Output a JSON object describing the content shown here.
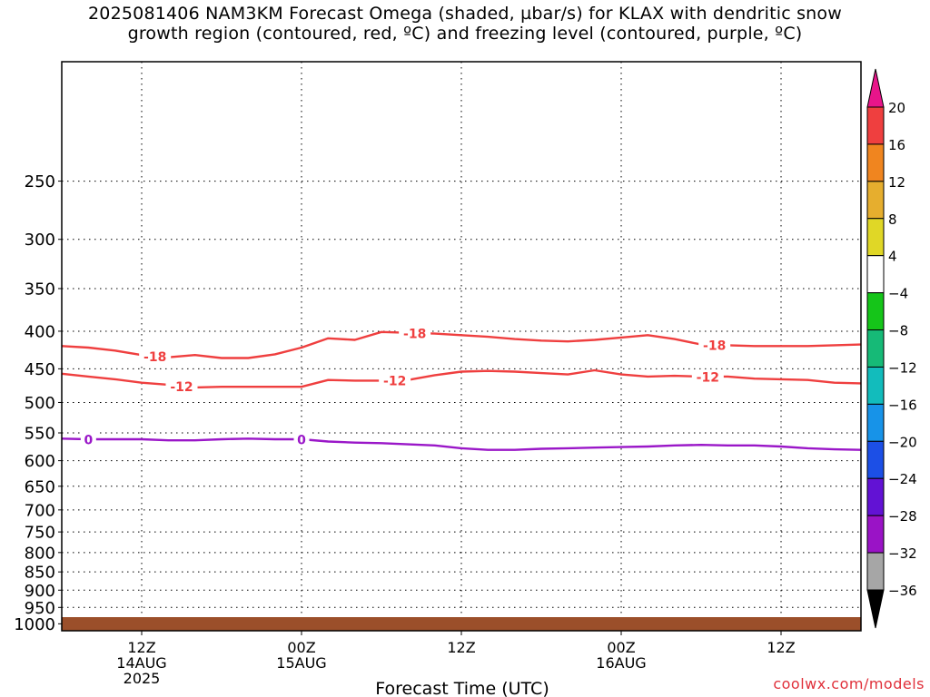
{
  "chart_data": {
    "type": "line",
    "title_line1": "2025081406 NAM3KM Forecast Omega (shaded, µbar/s) for KLAX with dendritic snow",
    "title_line2": "growth region (contoured, red, ºC) and freezing level (contoured, purple, ºC)",
    "xlabel": "Forecast Time (UTC)",
    "ylabel": "",
    "credit": "coolwx.com/models",
    "x_range_hours": [
      6,
      66
    ],
    "x_ticks": [
      {
        "hour": 12,
        "lines": [
          "12Z",
          "14AUG",
          "2025"
        ]
      },
      {
        "hour": 24,
        "lines": [
          "00Z",
          "15AUG"
        ]
      },
      {
        "hour": 36,
        "lines": [
          "12Z"
        ]
      },
      {
        "hour": 48,
        "lines": [
          "00Z",
          "16AUG"
        ]
      },
      {
        "hour": 60,
        "lines": [
          "12Z"
        ]
      }
    ],
    "y_scale": "log",
    "y_range_hpa": [
      1022,
      172
    ],
    "y_ticks": [
      250,
      300,
      350,
      400,
      450,
      500,
      550,
      600,
      650,
      700,
      750,
      800,
      850,
      900,
      950,
      1000
    ],
    "grid": true,
    "surface_color": "#9b4f2a",
    "series": [
      {
        "name": "-18",
        "color": "#ef3f3f",
        "x": [
          6,
          8,
          10,
          12,
          14,
          16,
          18,
          20,
          22,
          24,
          26,
          28,
          30,
          32,
          34,
          36,
          38,
          40,
          42,
          44,
          46,
          48,
          50,
          52,
          54,
          56,
          58,
          60,
          62,
          64,
          66
        ],
        "y": [
          419,
          421,
          425,
          431,
          434,
          431,
          435,
          435,
          430,
          421,
          409,
          411,
          401,
          402,
          403,
          405,
          407,
          410,
          412,
          413,
          411,
          408,
          405,
          410,
          417,
          418,
          419,
          419,
          419,
          418,
          417
        ],
        "labels_at_hours": [
          13,
          32.5,
          55
        ]
      },
      {
        "name": "-12",
        "color": "#ef3f3f",
        "x": [
          6,
          8,
          10,
          12,
          14,
          16,
          18,
          20,
          22,
          24,
          26,
          28,
          30,
          32,
          34,
          36,
          38,
          40,
          42,
          44,
          46,
          48,
          50,
          52,
          54,
          56,
          58,
          60,
          62,
          64,
          66
        ],
        "y": [
          457,
          461,
          465,
          470,
          473,
          477,
          476,
          476,
          476,
          476,
          466,
          467,
          467,
          466,
          459,
          454,
          453,
          454,
          456,
          458,
          452,
          458,
          461,
          460,
          461,
          461,
          464,
          465,
          466,
          470,
          471
        ],
        "labels_at_hours": [
          15,
          31,
          54.5
        ]
      },
      {
        "name": "0",
        "color": "#9a17c8",
        "x": [
          6,
          8,
          10,
          12,
          14,
          16,
          18,
          20,
          22,
          24,
          26,
          28,
          30,
          32,
          34,
          36,
          38,
          40,
          42,
          44,
          46,
          48,
          50,
          52,
          54,
          56,
          58,
          60,
          62,
          64,
          66
        ],
        "y": [
          560,
          561,
          561,
          561,
          563,
          563,
          561,
          560,
          561,
          561,
          565,
          567,
          568,
          570,
          572,
          577,
          580,
          580,
          578,
          577,
          576,
          575,
          574,
          572,
          571,
          572,
          572,
          574,
          577,
          579,
          580
        ],
        "labels_at_hours": [
          8,
          24
        ]
      }
    ],
    "colorbar": {
      "ticks": [
        "20",
        "16",
        "12",
        "8",
        "4",
        "−4",
        "−8",
        "−12",
        "−16",
        "−20",
        "−24",
        "−28",
        "−32",
        "−36"
      ],
      "colors": [
        "#ef3f3f",
        "#f0851f",
        "#e6ae2e",
        "#e0d726",
        "#ffffff",
        "#15c519",
        "#16ba77",
        "#12bcbc",
        "#1793e8",
        "#1c4fe6",
        "#6212d4",
        "#9a13c6",
        "#a6a6a6"
      ],
      "top_arrow_color": "#e8158a",
      "bottom_arrow_color": "#000000"
    }
  }
}
